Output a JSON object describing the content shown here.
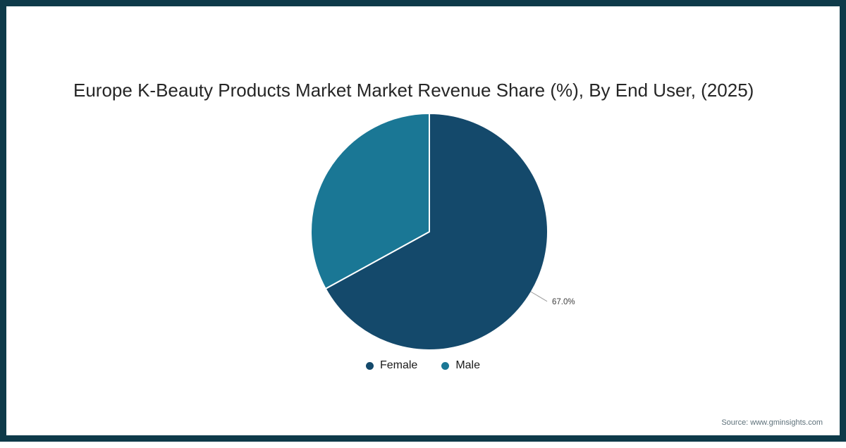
{
  "frame": {
    "border_color": "#0E3A49",
    "background": "#FFFFFF"
  },
  "title": "Europe K-Beauty Products Market Market Revenue Share (%), By End User, (2025)",
  "source": "Source: www.gminsights.com",
  "chart_data": {
    "type": "pie",
    "title": "Europe K-Beauty Products Market Market Revenue Share (%), By End User, (2025)",
    "unit": "%",
    "start_angle_deg": 0,
    "direction": "clockwise",
    "slices": [
      {
        "label": "Female",
        "value": 67.0,
        "color": "#14496B"
      },
      {
        "label": "Male",
        "value": 33.0,
        "color": "#1A7795"
      }
    ],
    "annotations": [
      {
        "slice": "Female",
        "text": "67.0%"
      }
    ],
    "legend_position": "bottom"
  },
  "legend": {
    "items": [
      {
        "label": "Female",
        "color": "#14496B"
      },
      {
        "label": "Male",
        "color": "#1A7795"
      }
    ]
  },
  "annotation": {
    "text_color": "#3F3F3F",
    "line_color": "#9B9B9B"
  }
}
